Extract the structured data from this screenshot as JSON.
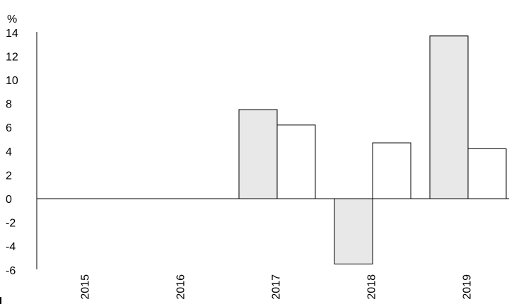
{
  "chart_data": {
    "type": "bar",
    "ylabel": "%",
    "ylim": [
      -6,
      14
    ],
    "yticks": [
      14,
      12,
      10,
      8,
      6,
      4,
      2,
      0,
      -2,
      -4,
      -6
    ],
    "ytick_labels": [
      "14",
      "12",
      "10",
      "8",
      "6",
      "4",
      "2",
      "0",
      "-2",
      "-4",
      "-6"
    ],
    "categories": [
      "2015",
      "2016",
      "2017",
      "2018",
      "2019"
    ],
    "series": [
      {
        "values": [
          null,
          null,
          7.5,
          -5.5,
          13.7
        ],
        "color": "#e8e8e8"
      },
      {
        "values": [
          null,
          null,
          6.2,
          4.7,
          4.2
        ],
        "color": "#ffffff"
      }
    ],
    "bar_stroke": "#000000",
    "grid": false,
    "legend": "none"
  }
}
